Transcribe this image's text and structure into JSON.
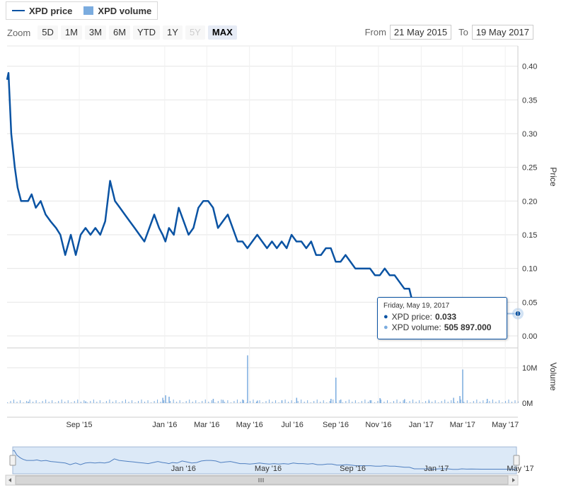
{
  "legend": {
    "price_label": "XPD price",
    "volume_label": "XPD volume"
  },
  "range_selector": {
    "zoom_label": "Zoom",
    "buttons": [
      "5D",
      "1M",
      "3M",
      "6M",
      "YTD",
      "1Y",
      "5Y",
      "MAX"
    ],
    "disabled_button": "5Y",
    "active_button": "MAX",
    "from_label": "From",
    "from_value": "21 May 2015",
    "to_label": "To",
    "to_value": "19 May 2017"
  },
  "tooltip": {
    "date": "Friday, May 19, 2017",
    "price_label": "XPD price:",
    "price_value": "0.033",
    "volume_label": "XPD volume:",
    "volume_value": "505 897.000"
  },
  "colors": {
    "price_line": "#0a53a3",
    "volume_bars": "#7bacdf",
    "navigator_fill": "#dce9f7"
  },
  "chart_data": [
    {
      "type": "line",
      "name": "price",
      "ylabel": "Price",
      "ylim": [
        0,
        0.43
      ],
      "yticks": [
        "0.00",
        "0.05",
        "0.10",
        "0.15",
        "0.20",
        "0.25",
        "0.30",
        "0.35",
        "0.40"
      ],
      "x": [
        "2015-05-21",
        "2015-05-23",
        "2015-05-27",
        "2015-06-01",
        "2015-06-05",
        "2015-06-10",
        "2015-06-15",
        "2015-06-20",
        "2015-06-25",
        "2015-07-01",
        "2015-07-08",
        "2015-07-15",
        "2015-07-22",
        "2015-07-30",
        "2015-08-05",
        "2015-08-12",
        "2015-08-20",
        "2015-08-27",
        "2015-09-03",
        "2015-09-10",
        "2015-09-17",
        "2015-09-24",
        "2015-10-01",
        "2015-10-08",
        "2015-10-15",
        "2015-10-22",
        "2015-10-29",
        "2015-11-05",
        "2015-11-12",
        "2015-11-19",
        "2015-11-26",
        "2015-12-03",
        "2015-12-10",
        "2015-12-17",
        "2015-12-24",
        "2015-12-29",
        "2016-01-02",
        "2016-01-07",
        "2016-01-14",
        "2016-01-21",
        "2016-01-28",
        "2016-02-04",
        "2016-02-11",
        "2016-02-18",
        "2016-02-25",
        "2016-03-03",
        "2016-03-10",
        "2016-03-17",
        "2016-03-24",
        "2016-03-31",
        "2016-04-07",
        "2016-04-14",
        "2016-04-21",
        "2016-04-28",
        "2016-05-05",
        "2016-05-12",
        "2016-05-19",
        "2016-05-26",
        "2016-06-02",
        "2016-06-09",
        "2016-06-16",
        "2016-06-23",
        "2016-06-30",
        "2016-07-07",
        "2016-07-14",
        "2016-07-21",
        "2016-07-28",
        "2016-08-04",
        "2016-08-11",
        "2016-08-18",
        "2016-08-25",
        "2016-09-01",
        "2016-09-08",
        "2016-09-15",
        "2016-09-22",
        "2016-09-29",
        "2016-10-06",
        "2016-10-13",
        "2016-10-20",
        "2016-10-27",
        "2016-11-03",
        "2016-11-10",
        "2016-11-17",
        "2016-11-24",
        "2016-12-01",
        "2016-12-08",
        "2016-12-15",
        "2016-12-22",
        "2016-12-29",
        "2017-01-05",
        "2017-01-12",
        "2017-01-19",
        "2017-01-26",
        "2017-02-02",
        "2017-02-09",
        "2017-02-16",
        "2017-02-23",
        "2017-03-01",
        "2017-03-08",
        "2017-03-15",
        "2017-03-22",
        "2017-03-29",
        "2017-04-05",
        "2017-04-12",
        "2017-04-19",
        "2017-04-26",
        "2017-05-03",
        "2017-05-10",
        "2017-05-19"
      ],
      "values": [
        0.38,
        0.39,
        0.3,
        0.25,
        0.22,
        0.2,
        0.2,
        0.2,
        0.21,
        0.19,
        0.2,
        0.18,
        0.17,
        0.16,
        0.15,
        0.12,
        0.15,
        0.12,
        0.15,
        0.16,
        0.15,
        0.16,
        0.15,
        0.17,
        0.23,
        0.2,
        0.19,
        0.18,
        0.17,
        0.16,
        0.15,
        0.14,
        0.16,
        0.18,
        0.16,
        0.15,
        0.14,
        0.16,
        0.15,
        0.19,
        0.17,
        0.15,
        0.16,
        0.19,
        0.2,
        0.2,
        0.19,
        0.16,
        0.17,
        0.18,
        0.16,
        0.14,
        0.14,
        0.13,
        0.14,
        0.15,
        0.14,
        0.13,
        0.14,
        0.13,
        0.14,
        0.13,
        0.15,
        0.14,
        0.14,
        0.13,
        0.14,
        0.12,
        0.12,
        0.13,
        0.13,
        0.11,
        0.11,
        0.12,
        0.11,
        0.1,
        0.1,
        0.1,
        0.1,
        0.09,
        0.09,
        0.1,
        0.09,
        0.09,
        0.08,
        0.07,
        0.07,
        0.04,
        0.04,
        0.04,
        0.04,
        0.03,
        0.04,
        0.04,
        0.04,
        0.03,
        0.03,
        0.04,
        0.035,
        0.038,
        0.035,
        0.034,
        0.033,
        0.034,
        0.033,
        0.034,
        0.033,
        0.033,
        0.033
      ]
    },
    {
      "type": "bar",
      "name": "volume",
      "ylabel": "Volume",
      "ylim": [
        0,
        15000000
      ],
      "yticks": [
        "0M",
        "10M"
      ],
      "x": [
        "2015-06-20",
        "2015-09-10",
        "2015-12-29",
        "2016-01-02",
        "2016-01-07",
        "2016-03-10",
        "2016-03-24",
        "2016-04-21",
        "2016-04-28",
        "2016-05-12",
        "2016-06-16",
        "2016-07-07",
        "2016-08-25",
        "2016-09-01",
        "2016-09-08",
        "2016-10-20",
        "2016-11-03",
        "2016-12-08",
        "2017-01-12",
        "2017-02-16",
        "2017-02-25",
        "2017-03-01",
        "2017-04-05",
        "2017-05-19"
      ],
      "values": [
        400000,
        500000,
        1500000,
        2200000,
        1800000,
        1200000,
        900000,
        1000000,
        13500000,
        700000,
        800000,
        1500000,
        1200000,
        7200000,
        1000000,
        800000,
        1400000,
        1100000,
        600000,
        1500000,
        2000000,
        9500000,
        1200000,
        505897
      ]
    }
  ],
  "x_axis": {
    "ticks": [
      "Sep '15",
      "Jan '16",
      "Mar '16",
      "May '16",
      "Jul '16",
      "Sep '16",
      "Nov '16",
      "Jan '17",
      "Mar '17",
      "May '17"
    ]
  },
  "navigator": {
    "labels": [
      "Jan '16",
      "May '16",
      "Sep '16",
      "Jan '17",
      "May '17"
    ]
  }
}
